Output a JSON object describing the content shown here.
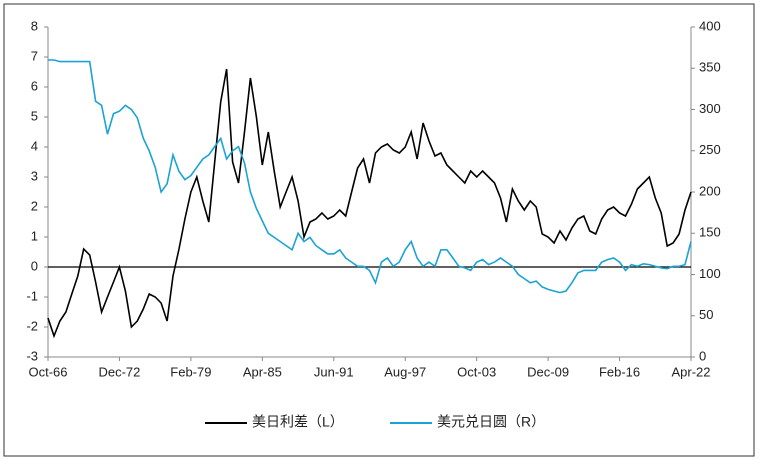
{
  "chart_data": {
    "type": "line",
    "categories": [
      "Oct-66",
      null,
      null,
      null,
      null,
      null,
      null,
      null,
      null,
      null,
      null,
      null,
      "Dec-72",
      null,
      null,
      null,
      null,
      null,
      null,
      null,
      null,
      null,
      null,
      null,
      "Feb-79",
      null,
      null,
      null,
      null,
      null,
      null,
      null,
      null,
      null,
      null,
      null,
      "Apr-85",
      null,
      null,
      null,
      null,
      null,
      null,
      null,
      null,
      null,
      null,
      null,
      "Jun-91",
      null,
      null,
      null,
      null,
      null,
      null,
      null,
      null,
      null,
      null,
      null,
      "Aug-97",
      null,
      null,
      null,
      null,
      null,
      null,
      null,
      null,
      null,
      null,
      null,
      "Oct-03",
      null,
      null,
      null,
      null,
      null,
      null,
      null,
      null,
      null,
      null,
      null,
      "Dec-09",
      null,
      null,
      null,
      null,
      null,
      null,
      null,
      null,
      null,
      null,
      null,
      "Feb-16",
      null,
      null,
      null,
      null,
      null,
      null,
      null,
      null,
      null,
      null,
      null,
      "Apr-22"
    ],
    "series": [
      {
        "name": "美日利差（L）",
        "color": "#000000",
        "axis": "y",
        "values": [
          -1.7,
          -2.3,
          -1.8,
          -1.5,
          -0.9,
          -0.3,
          0.6,
          0.4,
          -0.5,
          -1.5,
          -1.0,
          -0.5,
          0.0,
          -0.8,
          -2.0,
          -1.8,
          -1.4,
          -0.9,
          -1.0,
          -1.2,
          -1.8,
          -0.3,
          0.6,
          1.6,
          2.5,
          3.0,
          2.2,
          1.5,
          3.5,
          5.5,
          6.6,
          3.5,
          2.8,
          4.5,
          6.3,
          5.0,
          3.4,
          4.5,
          3.2,
          2.0,
          2.5,
          3.0,
          2.2,
          1.0,
          1.5,
          1.6,
          1.8,
          1.6,
          1.7,
          1.9,
          1.7,
          2.5,
          3.3,
          3.6,
          2.8,
          3.8,
          4.0,
          4.1,
          3.9,
          3.8,
          4.0,
          4.5,
          3.6,
          4.8,
          4.2,
          3.7,
          3.8,
          3.4,
          3.2,
          3.0,
          2.8,
          3.2,
          3.0,
          3.2,
          3.0,
          2.8,
          2.3,
          1.5,
          2.6,
          2.2,
          1.9,
          2.2,
          2.0,
          1.1,
          1.0,
          0.8,
          1.2,
          0.9,
          1.3,
          1.6,
          1.7,
          1.2,
          1.1,
          1.6,
          1.9,
          2.0,
          1.8,
          1.7,
          2.1,
          2.6,
          2.8,
          3.0,
          2.3,
          1.8,
          0.7,
          0.8,
          1.1,
          1.9,
          2.5
        ]
      },
      {
        "name": "美元兑日圆（R）",
        "color": "#1aa3d4",
        "axis": "y2",
        "values": [
          360,
          360,
          358,
          358,
          358,
          358,
          358,
          358,
          310,
          305,
          270,
          295,
          298,
          305,
          300,
          290,
          265,
          250,
          230,
          200,
          210,
          245,
          225,
          215,
          220,
          230,
          240,
          245,
          255,
          265,
          240,
          250,
          255,
          235,
          200,
          180,
          165,
          150,
          145,
          140,
          135,
          130,
          150,
          140,
          145,
          135,
          130,
          125,
          125,
          130,
          120,
          115,
          110,
          110,
          105,
          90,
          115,
          120,
          110,
          115,
          130,
          140,
          120,
          110,
          115,
          110,
          130,
          130,
          120,
          110,
          108,
          105,
          115,
          118,
          112,
          115,
          120,
          115,
          110,
          100,
          95,
          90,
          92,
          85,
          82,
          80,
          78,
          80,
          90,
          102,
          105,
          105,
          105,
          115,
          118,
          120,
          115,
          105,
          112,
          110,
          113,
          112,
          110,
          108,
          107,
          110,
          110,
          112,
          140
        ]
      }
    ],
    "ylim": [
      -3,
      8
    ],
    "yticks": [
      -3,
      -2,
      -1,
      0,
      1,
      2,
      3,
      4,
      5,
      6,
      7,
      8
    ],
    "y2lim": [
      0,
      400
    ],
    "y2ticks": [
      0,
      50,
      100,
      150,
      200,
      250,
      300,
      350,
      400
    ],
    "zero_line": true
  }
}
